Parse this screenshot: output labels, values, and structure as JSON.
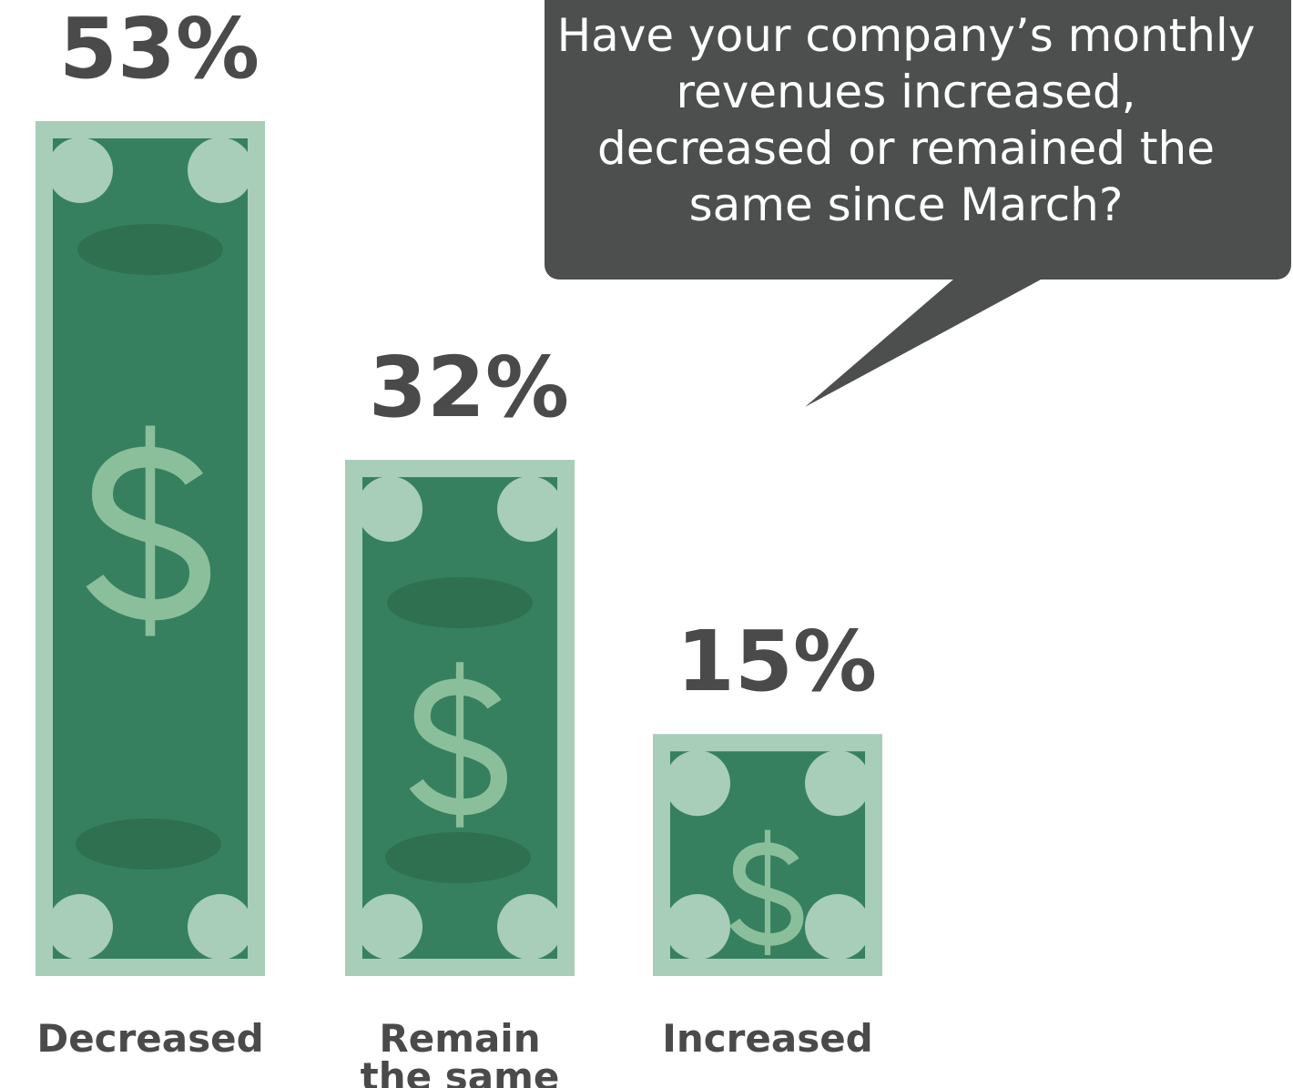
{
  "chart_data": {
    "type": "bar",
    "title": "Have your company’s monthly revenues increased, decreased or remained the same since March?",
    "categories": [
      "Decreased",
      "Remain the same",
      "Increased"
    ],
    "values": [
      53,
      32,
      15
    ],
    "value_labels": [
      "53%",
      "32%",
      "15%"
    ]
  }
}
